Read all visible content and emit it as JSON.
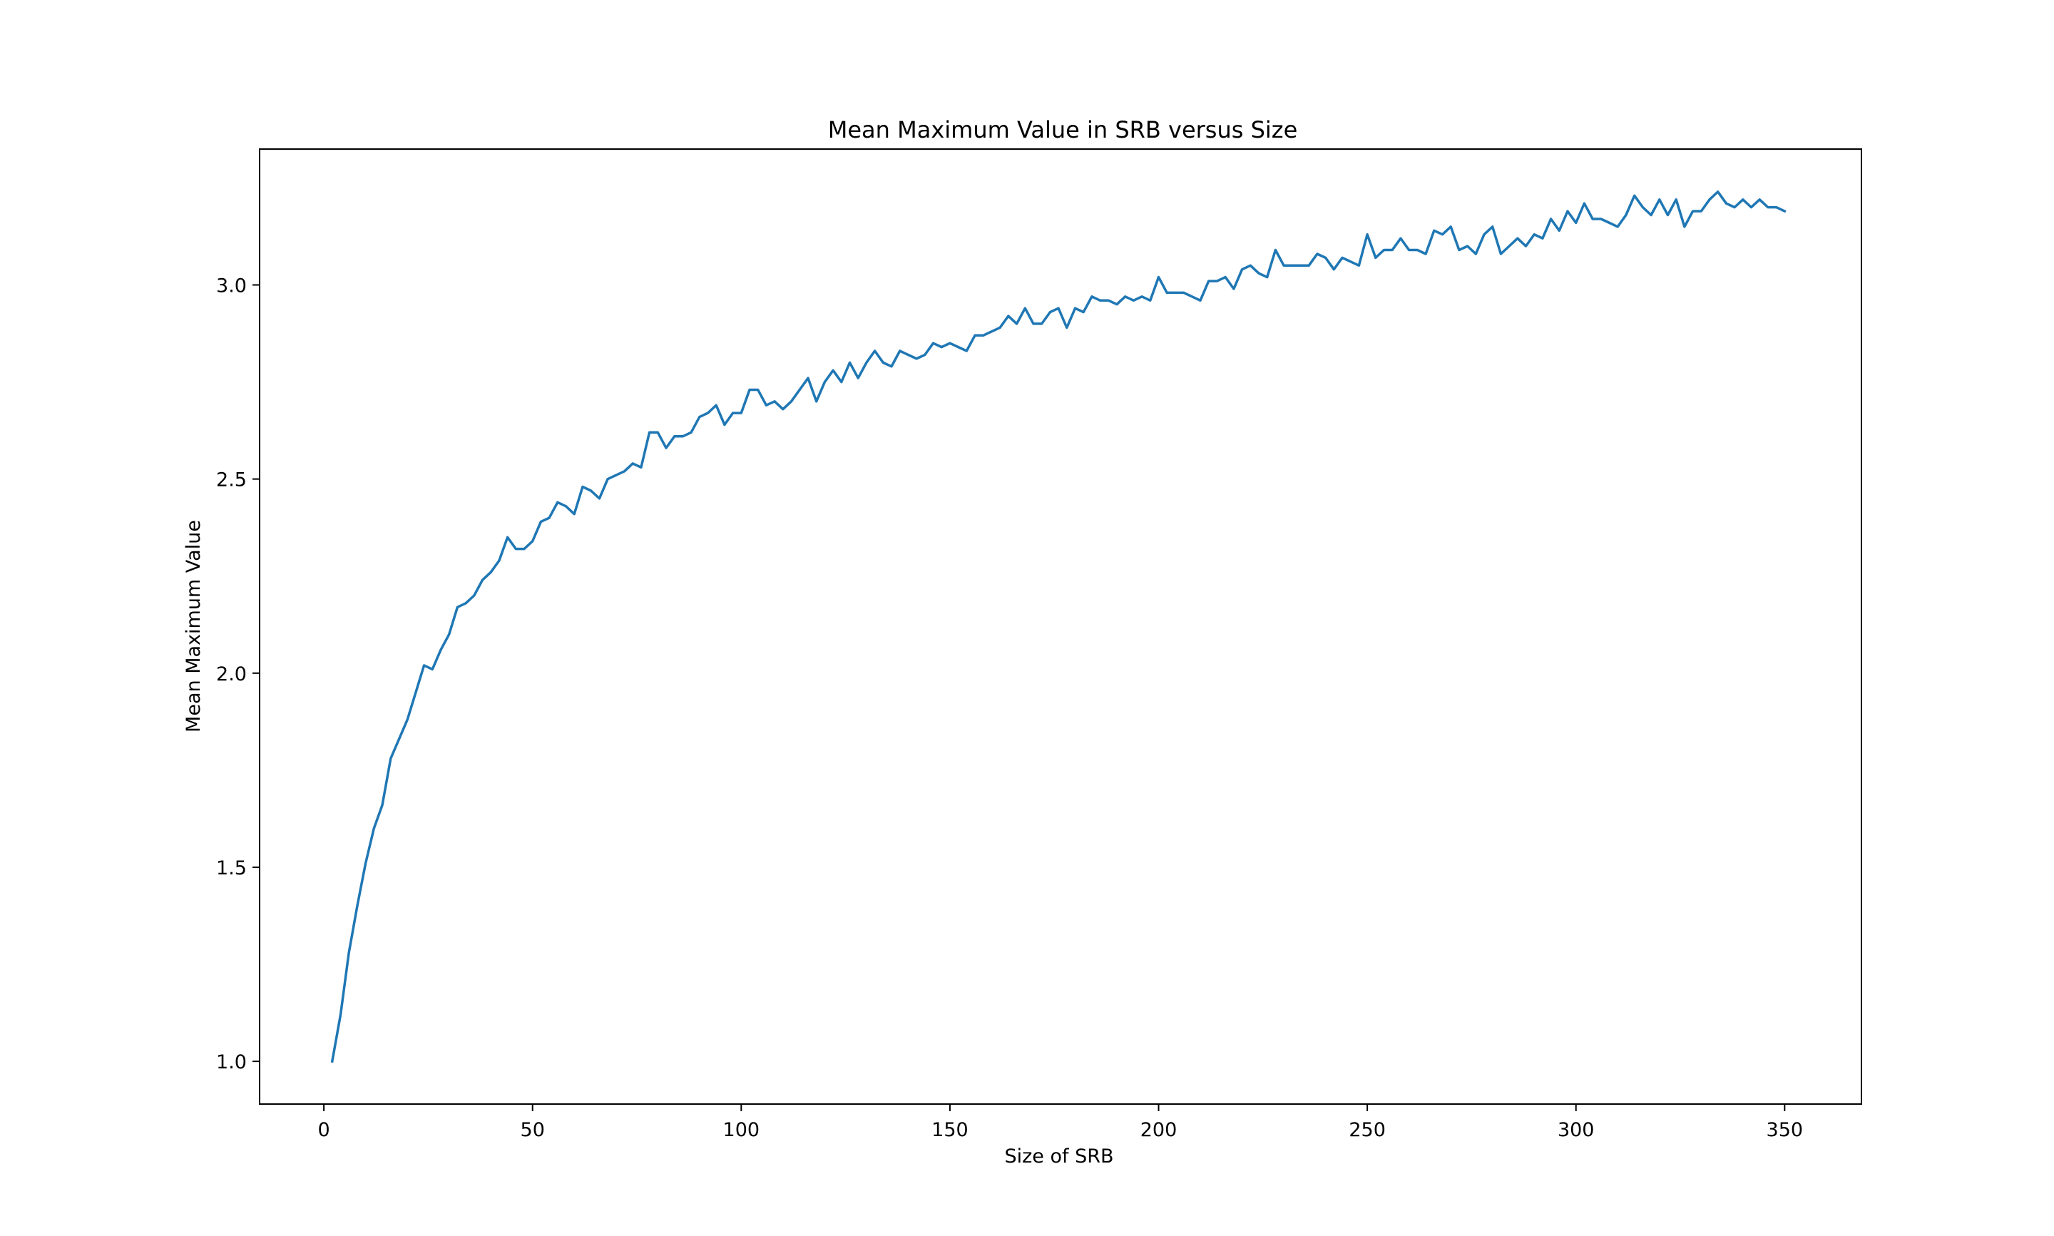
{
  "chart_data": {
    "type": "line",
    "title": "Mean Maximum Value in SRB versus Size",
    "xlabel": "Size of SRB",
    "ylabel": "Mean Maximum Value",
    "xlim": [
      -15.4,
      368.4
    ],
    "ylim": [
      0.89,
      3.35
    ],
    "xticks": [
      0,
      50,
      100,
      150,
      200,
      250,
      300,
      350
    ],
    "yticks": [
      1.0,
      1.5,
      2.0,
      2.5,
      3.0
    ],
    "xtick_labels": [
      "0",
      "50",
      "100",
      "150",
      "200",
      "250",
      "300",
      "350"
    ],
    "ytick_labels": [
      "1.0",
      "1.5",
      "2.0",
      "2.5",
      "3.0"
    ],
    "grid": false,
    "legend": "none",
    "series": [
      {
        "color": "#1f77b4",
        "x": [
          2,
          4,
          6,
          8,
          10,
          12,
          14,
          16,
          18,
          20,
          22,
          24,
          26,
          28,
          30,
          32,
          34,
          36,
          38,
          40,
          42,
          44,
          46,
          48,
          50,
          52,
          54,
          56,
          58,
          60,
          62,
          64,
          66,
          68,
          70,
          72,
          74,
          76,
          78,
          80,
          82,
          84,
          86,
          88,
          90,
          92,
          94,
          96,
          98,
          100,
          102,
          104,
          106,
          108,
          110,
          112,
          114,
          116,
          118,
          120,
          122,
          124,
          126,
          128,
          130,
          132,
          134,
          136,
          138,
          140,
          142,
          144,
          146,
          148,
          150,
          152,
          154,
          156,
          158,
          160,
          162,
          164,
          166,
          168,
          170,
          172,
          174,
          176,
          178,
          180,
          182,
          184,
          186,
          188,
          190,
          192,
          194,
          196,
          198,
          200,
          202,
          204,
          206,
          208,
          210,
          212,
          214,
          216,
          218,
          220,
          222,
          224,
          226,
          228,
          230,
          232,
          234,
          236,
          238,
          240,
          242,
          244,
          246,
          248,
          250,
          252,
          254,
          256,
          258,
          260,
          262,
          264,
          266,
          268,
          270,
          272,
          274,
          276,
          278,
          280,
          282,
          284,
          286,
          288,
          290,
          292,
          294,
          296,
          298,
          300,
          302,
          304,
          306,
          308,
          310,
          312,
          314,
          316,
          318,
          320,
          322,
          324,
          326,
          328,
          330,
          332,
          334,
          336,
          338,
          340,
          342,
          344,
          346,
          348,
          350
        ],
        "y": [
          1.0,
          1.12,
          1.28,
          1.4,
          1.51,
          1.6,
          1.66,
          1.78,
          1.83,
          1.88,
          1.95,
          2.02,
          2.01,
          2.06,
          2.1,
          2.17,
          2.18,
          2.2,
          2.24,
          2.26,
          2.29,
          2.35,
          2.32,
          2.32,
          2.34,
          2.39,
          2.4,
          2.44,
          2.43,
          2.41,
          2.48,
          2.47,
          2.45,
          2.5,
          2.51,
          2.52,
          2.54,
          2.53,
          2.62,
          2.62,
          2.58,
          2.61,
          2.61,
          2.62,
          2.66,
          2.67,
          2.69,
          2.64,
          2.67,
          2.67,
          2.73,
          2.73,
          2.69,
          2.7,
          2.68,
          2.7,
          2.73,
          2.76,
          2.7,
          2.75,
          2.78,
          2.75,
          2.8,
          2.76,
          2.8,
          2.83,
          2.8,
          2.79,
          2.83,
          2.82,
          2.81,
          2.82,
          2.85,
          2.84,
          2.85,
          2.84,
          2.83,
          2.87,
          2.87,
          2.88,
          2.89,
          2.92,
          2.9,
          2.94,
          2.9,
          2.9,
          2.93,
          2.94,
          2.89,
          2.94,
          2.93,
          2.97,
          2.96,
          2.96,
          2.95,
          2.97,
          2.96,
          2.97,
          2.96,
          3.02,
          2.98,
          2.98,
          2.98,
          2.97,
          2.96,
          3.01,
          3.01,
          3.02,
          2.99,
          3.04,
          3.05,
          3.03,
          3.02,
          3.09,
          3.05,
          3.05,
          3.05,
          3.05,
          3.08,
          3.07,
          3.04,
          3.07,
          3.06,
          3.05,
          3.13,
          3.07,
          3.09,
          3.09,
          3.12,
          3.09,
          3.09,
          3.08,
          3.14,
          3.13,
          3.15,
          3.09,
          3.1,
          3.08,
          3.13,
          3.15,
          3.08,
          3.1,
          3.12,
          3.1,
          3.13,
          3.12,
          3.17,
          3.14,
          3.19,
          3.16,
          3.21,
          3.17,
          3.17,
          3.16,
          3.15,
          3.18,
          3.23,
          3.2,
          3.18,
          3.22,
          3.18,
          3.22,
          3.15,
          3.19,
          3.19,
          3.22,
          3.24,
          3.21,
          3.2,
          3.22,
          3.2,
          3.22,
          3.2,
          3.2,
          3.19
        ]
      }
    ]
  }
}
